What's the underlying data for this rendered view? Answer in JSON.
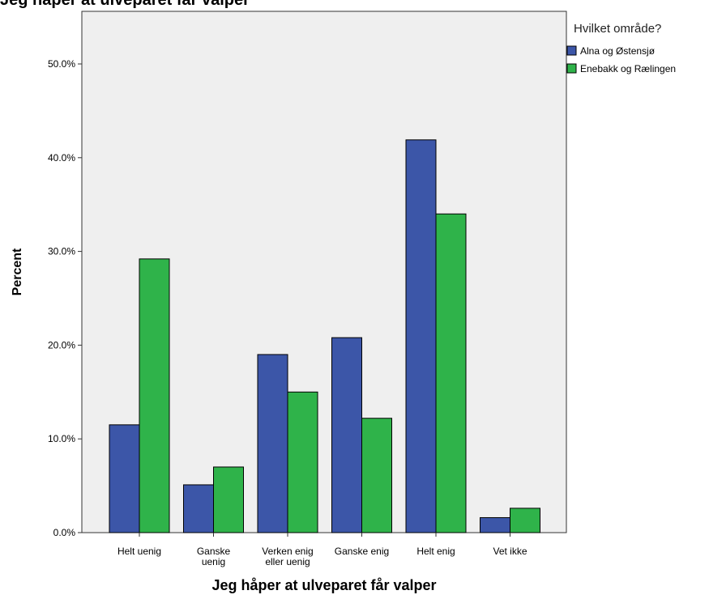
{
  "chart_data": {
    "type": "bar",
    "title": "Jeg håper at ulveparet får valper",
    "xlabel": "Jeg håper at ulveparet får valper",
    "ylabel": "Percent",
    "ylim": [
      0,
      55
    ],
    "yticks": [
      0,
      10,
      20,
      30,
      40,
      50
    ],
    "ytick_labels": [
      "0.0%",
      "10.0%",
      "20.0%",
      "30.0%",
      "40.0%",
      "50.0%"
    ],
    "categories": [
      [
        "Helt uenig"
      ],
      [
        "Ganske",
        "uenig"
      ],
      [
        "Verken enig",
        "eller uenig"
      ],
      [
        "Ganske enig"
      ],
      [
        "Helt enig"
      ],
      [
        "Vet ikke"
      ]
    ],
    "series": [
      {
        "name": "Alna og Østensjø",
        "values": [
          11.5,
          5.1,
          19.0,
          20.8,
          41.9,
          1.6
        ]
      },
      {
        "name": "Enebakk og Rælingen",
        "values": [
          29.2,
          7.0,
          15.0,
          12.2,
          34.0,
          2.6
        ]
      }
    ],
    "legend": {
      "title": "Hvilket område?",
      "position": "right"
    },
    "grid": false,
    "colors": {
      "plot_bg": "#efefef",
      "series": [
        "#3c56a8",
        "#2fb34a"
      ],
      "axis": "#333333"
    }
  }
}
